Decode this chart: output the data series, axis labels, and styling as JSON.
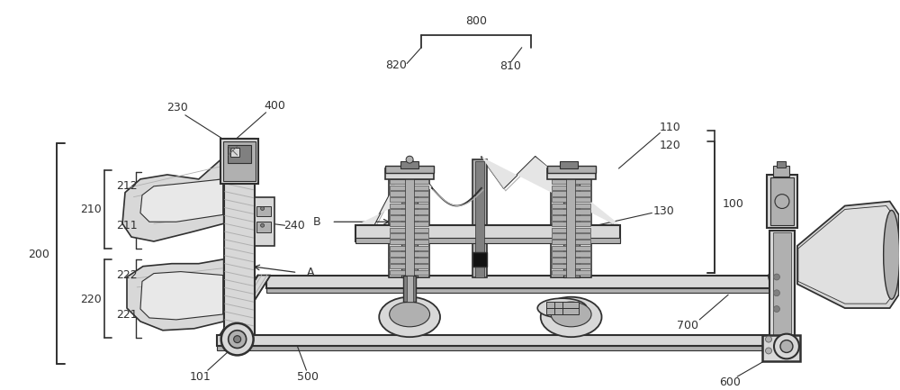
{
  "fig_width": 10.0,
  "fig_height": 4.33,
  "dpi": 100,
  "bg_color": "#ffffff",
  "lc": "#303030",
  "gl": "#d8d8d8",
  "gm": "#b0b0b0",
  "gd": "#808080",
  "gdd": "#606060"
}
